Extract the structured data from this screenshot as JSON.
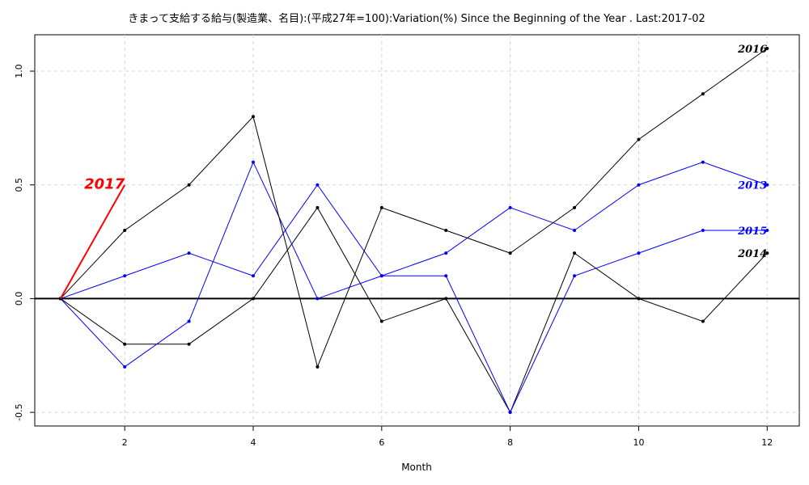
{
  "chart_data": {
    "type": "line",
    "title": "きまって支給する給与(製造業、名目):(平成27年=100):Variation(%) Since the Beginning of the Year . Last:2017-02",
    "xlabel": "Month",
    "ylabel": "",
    "xlim": [
      0.6,
      12.5
    ],
    "ylim": [
      -0.56,
      1.16
    ],
    "x_ticks": [
      2,
      4,
      6,
      8,
      10,
      12
    ],
    "y_ticks": [
      -0.5,
      0.0,
      0.5,
      1.0
    ],
    "x_tick_labels": [
      "2",
      "4",
      "6",
      "8",
      "10",
      "12"
    ],
    "y_tick_labels": [
      "-0.5",
      "0.0",
      "0.5",
      "1.0"
    ],
    "grid": true,
    "reference_line": 0,
    "series": [
      {
        "name": "2013",
        "color": "#0000ff",
        "label_color": "#0000ff",
        "x": [
          1,
          2,
          3,
          4,
          5,
          6,
          7,
          8,
          9,
          10,
          11,
          12
        ],
        "y": [
          0,
          0.1,
          0.2,
          0.1,
          0.5,
          0.1,
          0.2,
          0.4,
          0.3,
          0.5,
          0.6,
          0.5
        ]
      },
      {
        "name": "2014",
        "color": "#000000",
        "label_color": "#000000",
        "x": [
          1,
          2,
          3,
          4,
          5,
          6,
          7,
          8,
          9,
          10,
          11,
          12
        ],
        "y": [
          0,
          -0.2,
          -0.2,
          0,
          0.4,
          -0.1,
          0,
          -0.5,
          0.2,
          0,
          -0.1,
          0.2
        ]
      },
      {
        "name": "2015",
        "color": "#0000ff",
        "label_color": "#0000ff",
        "x": [
          1,
          2,
          3,
          4,
          5,
          6,
          7,
          8,
          9,
          10,
          11,
          12
        ],
        "y": [
          0,
          -0.3,
          -0.1,
          0.6,
          0,
          0.1,
          0.1,
          -0.5,
          0.1,
          0.2,
          0.3,
          0.3
        ]
      },
      {
        "name": "2016",
        "color": "#000000",
        "label_color": "#000000",
        "x": [
          1,
          2,
          3,
          4,
          5,
          6,
          7,
          8,
          9,
          10,
          11,
          12
        ],
        "y": [
          0,
          0.3,
          0.5,
          0.8,
          -0.3,
          0.4,
          0.3,
          0.2,
          0.4,
          0.7,
          0.9,
          1.1
        ]
      },
      {
        "name": "2017",
        "color": "#ff0000",
        "label_color": "#ff0000",
        "highlight": true,
        "x": [
          1,
          2
        ],
        "y": [
          0,
          0.5
        ]
      }
    ]
  }
}
